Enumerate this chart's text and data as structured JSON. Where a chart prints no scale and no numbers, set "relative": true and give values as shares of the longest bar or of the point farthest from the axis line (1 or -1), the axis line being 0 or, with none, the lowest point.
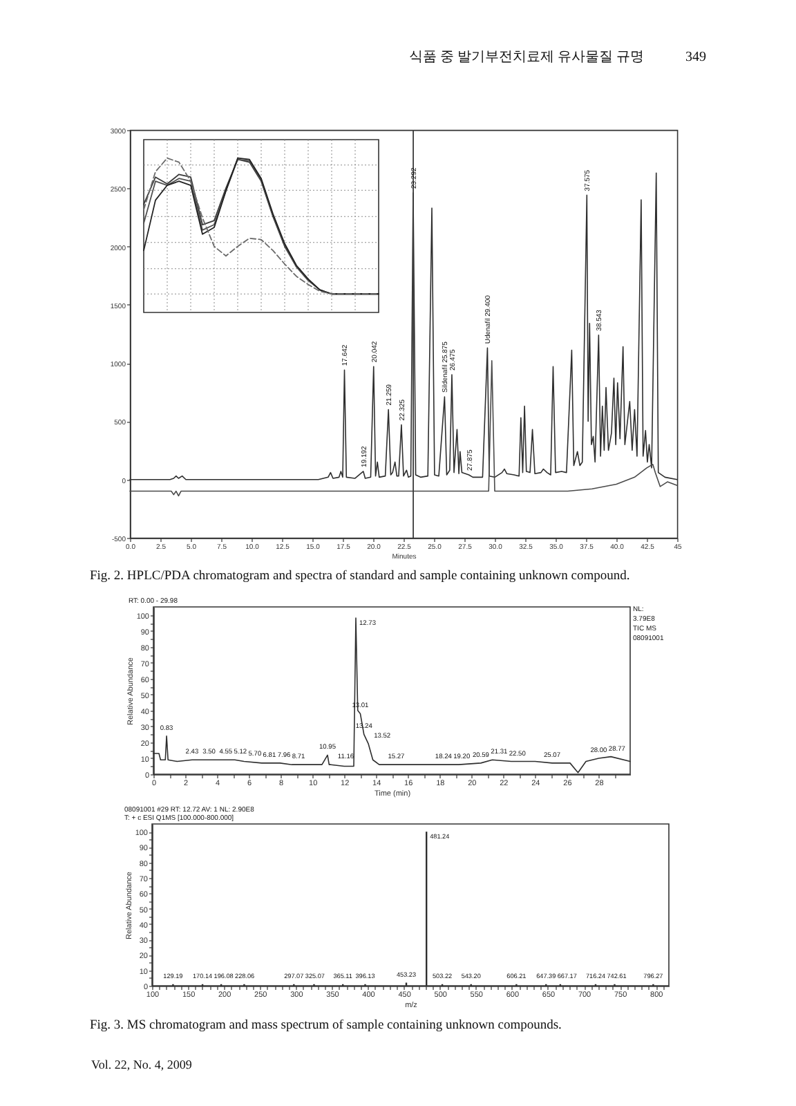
{
  "chart_data": [
    {
      "type": "line",
      "xlabel": "Minutes",
      "xlim": [
        0,
        45
      ],
      "ylim": [
        -500,
        3000
      ],
      "xticks": [
        {
          "value": 0,
          "label": "0.0"
        },
        2.5,
        {
          "value": 5,
          "label": "5.0"
        },
        7.5,
        {
          "value": 10,
          "label": "10.0"
        },
        12.5,
        {
          "value": 15,
          "label": "15.0"
        },
        17.5,
        {
          "value": 20,
          "label": "20.0"
        },
        22.5,
        {
          "value": 25,
          "label": "25.0"
        },
        27.5,
        {
          "value": 30,
          "label": "30.0"
        },
        32.5,
        {
          "value": 35,
          "label": "35.0"
        },
        37.5,
        {
          "value": 40,
          "label": "40.0"
        },
        42.5,
        45
      ],
      "yticks": [
        -500,
        0,
        500,
        1000,
        1500,
        2000,
        2500,
        3000
      ],
      "series": [
        {
          "color": "#2e2e2e",
          "x": [
            0,
            3.3,
            3.6,
            3.8,
            4.0,
            4.3,
            4.6,
            15.5,
            16.3,
            16.5,
            16.7,
            17.2,
            17.35,
            17.5,
            17.642,
            17.8,
            18.5,
            19.192,
            19.35,
            19.8,
            20.042,
            20.2,
            20.35,
            20.5,
            21.0,
            21.259,
            21.45,
            21.6,
            21.8,
            21.95,
            22.1,
            22.325,
            22.5,
            22.75,
            22.9,
            23.1,
            23.292,
            23.5,
            23.9,
            24.5,
            24.83,
            25.05,
            25.4,
            25.875,
            26.05,
            26.3,
            26.475,
            26.65,
            26.9,
            27.05,
            27.15,
            27.3,
            27.875,
            28.2,
            29.0,
            29.4,
            29.55,
            30.0,
            30.6,
            30.8,
            31.0,
            31.6,
            32.0,
            32.15,
            32.3,
            32.45,
            32.6,
            32.9,
            33.1,
            33.3,
            33.8,
            34.0,
            34.3,
            34.6,
            34.8,
            35.0,
            35.5,
            35.9,
            36.33,
            36.5,
            36.8,
            37.0,
            37.2,
            37.575,
            37.68,
            37.8,
            37.95,
            38.1,
            38.25,
            38.543,
            38.7,
            38.85,
            39.0,
            39.15,
            39.35,
            39.6,
            39.8,
            39.95,
            40.1,
            40.3,
            40.55,
            40.7,
            41.1,
            41.3,
            41.5,
            41.7,
            42.04,
            42.2,
            42.4,
            42.55,
            42.7,
            42.9,
            43.28,
            43.45,
            44.0,
            45
          ],
          "values": [
            0,
            0,
            10,
            30,
            10,
            30,
            0,
            0,
            20,
            60,
            10,
            20,
            70,
            20,
            940,
            20,
            10,
            70,
            10,
            20,
            970,
            30,
            150,
            20,
            30,
            600,
            40,
            60,
            150,
            30,
            30,
            470,
            30,
            80,
            20,
            30,
            2460,
            40,
            20,
            30,
            2330,
            40,
            30,
            710,
            40,
            80,
            900,
            60,
            430,
            50,
            240,
            60,
            40,
            20,
            20,
            1130,
            30,
            20,
            60,
            90,
            50,
            40,
            30,
            530,
            60,
            630,
            70,
            60,
            430,
            50,
            60,
            90,
            60,
            40,
            970,
            60,
            70,
            60,
            1110,
            120,
            240,
            120,
            150,
            2440,
            500,
            1340,
            300,
            370,
            150,
            1240,
            200,
            630,
            250,
            790,
            250,
            400,
            870,
            300,
            830,
            350,
            1140,
            300,
            670,
            250,
            600,
            200,
            2400,
            200,
            420,
            150,
            300,
            100,
            2630,
            60,
            20,
            0
          ]
        },
        {
          "color": "#4a4a4a",
          "x": [
            0,
            3.4,
            3.6,
            3.8,
            4.0,
            4.2,
            29.5,
            29.76,
            30.0,
            36.0,
            38.0,
            40.0,
            41.5,
            42.5,
            43.0,
            43.2,
            43.6,
            44.2,
            45
          ],
          "values": [
            -100,
            -100,
            -130,
            -100,
            -140,
            -100,
            -100,
            1020,
            -100,
            -100,
            -80,
            -40,
            20,
            100,
            130,
            60,
            -60,
            -20,
            -50
          ]
        }
      ],
      "ref_lines": [
        {
          "axis": "x",
          "value": 23.3,
          "color": "#3a3a3a"
        }
      ],
      "annotations": [
        "식품 중 발기부전치료제 유사물질 규명",
        "349",
        "Fig. 2. HPLC/PDA chromatogram and spectra of standard and sample containing unknown compound.",
        {
          "text": "17.642",
          "x": 17.642,
          "y": 940
        },
        {
          "text": "19.192",
          "x": 19.192,
          "y": 70
        },
        {
          "text": "20.042",
          "x": 20.042,
          "y": 970
        },
        {
          "text": "21.259",
          "x": 21.259,
          "y": 600
        },
        {
          "text": "22.325",
          "x": 22.325,
          "y": 470
        },
        {
          "text": "23.292",
          "x": 23.292,
          "y": 2460
        },
        {
          "text": "Sildenafil 25.875",
          "x": 25.875,
          "y": 710
        },
        {
          "text": "26.475",
          "x": 26.475,
          "y": 900
        },
        {
          "text": "27.875",
          "x": 27.875,
          "y": 40
        },
        {
          "text": "Udenafil 29.400",
          "x": 29.4,
          "y": 1130
        },
        {
          "text": "37.575",
          "x": 37.575,
          "y": 2440
        },
        {
          "text": "38.543",
          "x": 38.543,
          "y": 1240
        }
      ]
    },
    {
      "type": "line",
      "relative": true,
      "grid": true,
      "categories": [
        null,
        null,
        null,
        null,
        null,
        null,
        null,
        null,
        null,
        null,
        null,
        null,
        null,
        null,
        null,
        null,
        null,
        null,
        null,
        null,
        null
      ],
      "series": [
        {
          "color": "#3a3a3a",
          "values": [
            0.66,
            0.86,
            0.81,
            0.88,
            0.86,
            0.51,
            0.54,
            0.78,
            0.99,
            0.97,
            0.83,
            0.57,
            0.35,
            0.2,
            0.1,
            0.03,
            0,
            0,
            0,
            0,
            0
          ]
        },
        {
          "color": "#505050",
          "values": [
            0.52,
            0.83,
            0.8,
            0.85,
            0.83,
            0.47,
            0.51,
            0.76,
            0.99,
            0.98,
            0.84,
            0.58,
            0.36,
            0.2,
            0.1,
            0.03,
            0,
            0,
            0,
            0,
            0
          ]
        },
        {
          "color": "#222222",
          "values": [
            0.32,
            0.69,
            0.8,
            0.83,
            0.8,
            0.44,
            0.49,
            0.76,
            1,
            0.99,
            0.85,
            0.59,
            0.37,
            0.21,
            0.11,
            0.03,
            0,
            0,
            0,
            0,
            0
          ]
        },
        {
          "color": "#6a6a6a",
          "line_style": "dashed",
          "values": [
            0.62,
            0.9,
            1,
            0.97,
            0.83,
            0.56,
            0.35,
            0.28,
            0.35,
            0.41,
            0.4,
            0.32,
            0.22,
            0.13,
            0.07,
            0.02,
            0,
            0,
            0,
            0,
            0
          ]
        }
      ]
    },
    {
      "type": "line",
      "xlabel": "Time (min)",
      "ylabel": "Relative Abundance",
      "xlim": [
        0,
        29.98
      ],
      "ylim": [
        0,
        105
      ],
      "xticks": [
        0,
        {
          "value": 1,
          "label": null
        },
        2,
        {
          "value": 3,
          "label": null
        },
        4,
        {
          "value": 5,
          "label": null
        },
        6,
        {
          "value": 7,
          "label": null
        },
        8,
        {
          "value": 9,
          "label": null
        },
        10,
        {
          "value": 11,
          "label": null
        },
        12,
        {
          "value": 13,
          "label": null
        },
        14,
        {
          "value": 15,
          "label": null
        },
        16,
        {
          "value": 17,
          "label": null
        },
        18,
        {
          "value": 19,
          "label": null
        },
        20,
        {
          "value": 21,
          "label": null
        },
        22,
        {
          "value": 23,
          "label": null
        },
        24,
        {
          "value": 25,
          "label": null
        },
        26,
        {
          "value": 27,
          "label": null
        },
        28,
        {
          "value": 29,
          "label": null
        }
      ],
      "yticks": [
        0,
        {
          "value": 5,
          "label": null
        },
        10,
        {
          "value": 15,
          "label": null
        },
        20,
        {
          "value": 25,
          "label": null
        },
        30,
        {
          "value": 35,
          "label": null
        },
        40,
        {
          "value": 45,
          "label": null
        },
        50,
        {
          "value": 55,
          "label": null
        },
        60,
        {
          "value": 65,
          "label": null
        },
        70,
        {
          "value": 75,
          "label": null
        },
        80,
        {
          "value": 85,
          "label": null
        },
        90,
        {
          "value": 95,
          "label": null
        },
        100
      ],
      "series": [
        {
          "color": "#2e2e2e",
          "x": [
            0,
            0.35,
            0.45,
            0.75,
            0.83,
            0.92,
            1.5,
            2.43,
            3.5,
            4.55,
            5.12,
            5.7,
            6.81,
            7.96,
            8.71,
            9.5,
            10.6,
            10.95,
            11.05,
            11.16,
            12.0,
            12.6,
            12.73,
            12.85,
            13.01,
            13.24,
            13.52,
            13.8,
            14.2,
            15.27,
            16.5,
            18.24,
            19.2,
            20.59,
            21.31,
            22.5,
            24.0,
            25.07,
            26.2,
            26.7,
            27.2,
            28.0,
            28.77,
            29.98
          ],
          "values": [
            13,
            13,
            9,
            9,
            24,
            9,
            8,
            9,
            9,
            9,
            9,
            8,
            7,
            7,
            6,
            6,
            6,
            12,
            6,
            6,
            5,
            5,
            98,
            40,
            38,
            25,
            19,
            9,
            6,
            6,
            6,
            6,
            6,
            7,
            9,
            8,
            8,
            7,
            7,
            1,
            8,
            10,
            11,
            8
          ]
        }
      ],
      "annotations": [
        "RT: 0.00 - 29.98",
        "NL:\n3.79E8\nTIC MS\n08091001",
        {
          "text": "0.83",
          "x": 0.83,
          "y": 24
        },
        {
          "text": "2.43",
          "x": 2.43,
          "y": 9
        },
        {
          "text": "3.50",
          "x": 3.5,
          "y": 9
        },
        {
          "text": "4.55",
          "x": 4.55,
          "y": 9
        },
        {
          "text": "5.12",
          "x": 5.12,
          "y": 9
        },
        {
          "text": "5.70",
          "x": 5.7,
          "y": 8
        },
        {
          "text": "6.81",
          "x": 6.81,
          "y": 7
        },
        {
          "text": "7.96",
          "x": 7.96,
          "y": 7
        },
        {
          "text": "8.71",
          "x": 8.71,
          "y": 6
        },
        {
          "text": "10.95",
          "x": 10.95,
          "y": 12
        },
        {
          "text": "11.16",
          "x": 11.16,
          "y": 6
        },
        {
          "text": "12.73",
          "x": 12.73,
          "y": 98
        },
        {
          "text": "13.01",
          "x": 13.01,
          "y": 38
        },
        {
          "text": "13.24",
          "x": 13.24,
          "y": 25
        },
        {
          "text": "13.52",
          "x": 13.52,
          "y": 19
        },
        {
          "text": "15.27",
          "x": 15.27,
          "y": 6
        },
        {
          "text": "18.24",
          "x": 18.24,
          "y": 6
        },
        {
          "text": "19.20",
          "x": 19.2,
          "y": 6
        },
        {
          "text": "20.59",
          "x": 20.59,
          "y": 7
        },
        {
          "text": "21.31",
          "x": 21.31,
          "y": 9
        },
        {
          "text": "22.50",
          "x": 22.5,
          "y": 8
        },
        {
          "text": "25.07",
          "x": 25.07,
          "y": 7
        },
        {
          "text": "28.00",
          "x": 28.0,
          "y": 10
        },
        {
          "text": "28.77",
          "x": 28.77,
          "y": 11
        }
      ]
    },
    {
      "type": "bar",
      "xlabel": "m/z",
      "ylabel": "Relative Abundance",
      "xlim": [
        100,
        818
      ],
      "ylim": [
        0,
        105
      ],
      "color": "#2e2e2e",
      "xticks": [
        100,
        {
          "value": 110,
          "label": null
        },
        {
          "value": 120,
          "label": null
        },
        {
          "value": 130,
          "label": null
        },
        {
          "value": 140,
          "label": null
        },
        150,
        {
          "value": 160,
          "label": null
        },
        {
          "value": 170,
          "label": null
        },
        {
          "value": 180,
          "label": null
        },
        {
          "value": 190,
          "label": null
        },
        200,
        {
          "value": 210,
          "label": null
        },
        {
          "value": 220,
          "label": null
        },
        {
          "value": 230,
          "label": null
        },
        {
          "value": 240,
          "label": null
        },
        250,
        {
          "value": 260,
          "label": null
        },
        {
          "value": 270,
          "label": null
        },
        {
          "value": 280,
          "label": null
        },
        {
          "value": 290,
          "label": null
        },
        300,
        {
          "value": 310,
          "label": null
        },
        {
          "value": 320,
          "label": null
        },
        {
          "value": 330,
          "label": null
        },
        {
          "value": 340,
          "label": null
        },
        350,
        {
          "value": 360,
          "label": null
        },
        {
          "value": 370,
          "label": null
        },
        {
          "value": 380,
          "label": null
        },
        {
          "value": 390,
          "label": null
        },
        400,
        {
          "value": 410,
          "label": null
        },
        {
          "value": 420,
          "label": null
        },
        {
          "value": 430,
          "label": null
        },
        {
          "value": 440,
          "label": null
        },
        450,
        {
          "value": 460,
          "label": null
        },
        {
          "value": 470,
          "label": null
        },
        {
          "value": 480,
          "label": null
        },
        {
          "value": 490,
          "label": null
        },
        500,
        {
          "value": 510,
          "label": null
        },
        {
          "value": 520,
          "label": null
        },
        {
          "value": 530,
          "label": null
        },
        {
          "value": 540,
          "label": null
        },
        550,
        {
          "value": 560,
          "label": null
        },
        {
          "value": 570,
          "label": null
        },
        {
          "value": 580,
          "label": null
        },
        {
          "value": 590,
          "label": null
        },
        600,
        {
          "value": 610,
          "label": null
        },
        {
          "value": 620,
          "label": null
        },
        {
          "value": 630,
          "label": null
        },
        {
          "value": 640,
          "label": null
        },
        650,
        {
          "value": 660,
          "label": null
        },
        {
          "value": 670,
          "label": null
        },
        {
          "value": 680,
          "label": null
        },
        {
          "value": 690,
          "label": null
        },
        700,
        {
          "value": 710,
          "label": null
        },
        {
          "value": 720,
          "label": null
        },
        {
          "value": 730,
          "label": null
        },
        {
          "value": 740,
          "label": null
        },
        750,
        {
          "value": 760,
          "label": null
        },
        {
          "value": 770,
          "label": null
        },
        {
          "value": 780,
          "label": null
        },
        {
          "value": 790,
          "label": null
        },
        800,
        {
          "value": 810,
          "label": null
        }
      ],
      "yticks": [
        0,
        {
          "value": 5,
          "label": null
        },
        10,
        {
          "value": 15,
          "label": null
        },
        20,
        {
          "value": 25,
          "label": null
        },
        30,
        {
          "value": 35,
          "label": null
        },
        40,
        {
          "value": 45,
          "label": null
        },
        50,
        {
          "value": 55,
          "label": null
        },
        60,
        {
          "value": 65,
          "label": null
        },
        70,
        {
          "value": 75,
          "label": null
        },
        80,
        {
          "value": 85,
          "label": null
        },
        90,
        {
          "value": 95,
          "label": null
        },
        100
      ],
      "x": [
        129.19,
        170.14,
        196.08,
        228.06,
        297.07,
        325.07,
        365.11,
        396.13,
        453.23,
        481.24,
        503.22,
        543.2,
        606.21,
        647.39,
        667.17,
        716.24,
        742.61,
        796.27
      ],
      "values": [
        1,
        1,
        1,
        1,
        1,
        1,
        1,
        1,
        2,
        100,
        1,
        1,
        1,
        1,
        1,
        1,
        1,
        1
      ],
      "annotations": [
        "08091001 #29 RT: 12.72 AV: 1 NL: 2.90E8",
        "T: + c ESI Q1MS [100.000-800.000]",
        "Fig. 3. MS chromatogram and mass spectrum of sample containing unknown compounds.",
        "Vol. 22, No. 4, 2009",
        {
          "text": "129.19",
          "x": 129.19,
          "y": 1
        },
        {
          "text": "170.14",
          "x": 170.14,
          "y": 1
        },
        {
          "text": "196.08",
          "x": 196.08,
          "y": 1
        },
        {
          "text": "228.06",
          "x": 228.06,
          "y": 1
        },
        {
          "text": "297.07",
          "x": 297.07,
          "y": 1
        },
        {
          "text": "325.07",
          "x": 325.07,
          "y": 1
        },
        {
          "text": "365.11",
          "x": 365.11,
          "y": 1
        },
        {
          "text": "396.13",
          "x": 396.13,
          "y": 1
        },
        {
          "text": "453.23",
          "x": 453.23,
          "y": 2
        },
        {
          "text": "481.24",
          "x": 481.24,
          "y": 100
        },
        {
          "text": "503.22",
          "x": 503.22,
          "y": 1
        },
        {
          "text": "543.20",
          "x": 543.2,
          "y": 1
        },
        {
          "text": "606.21",
          "x": 606.21,
          "y": 1
        },
        {
          "text": "647.39",
          "x": 647.39,
          "y": 1
        },
        {
          "text": "667.17",
          "x": 667.17,
          "y": 1
        },
        {
          "text": "716.24",
          "x": 716.24,
          "y": 1
        },
        {
          "text": "742.61",
          "x": 742.61,
          "y": 1
        },
        {
          "text": "796.27",
          "x": 796.27,
          "y": 1
        }
      ]
    }
  ]
}
